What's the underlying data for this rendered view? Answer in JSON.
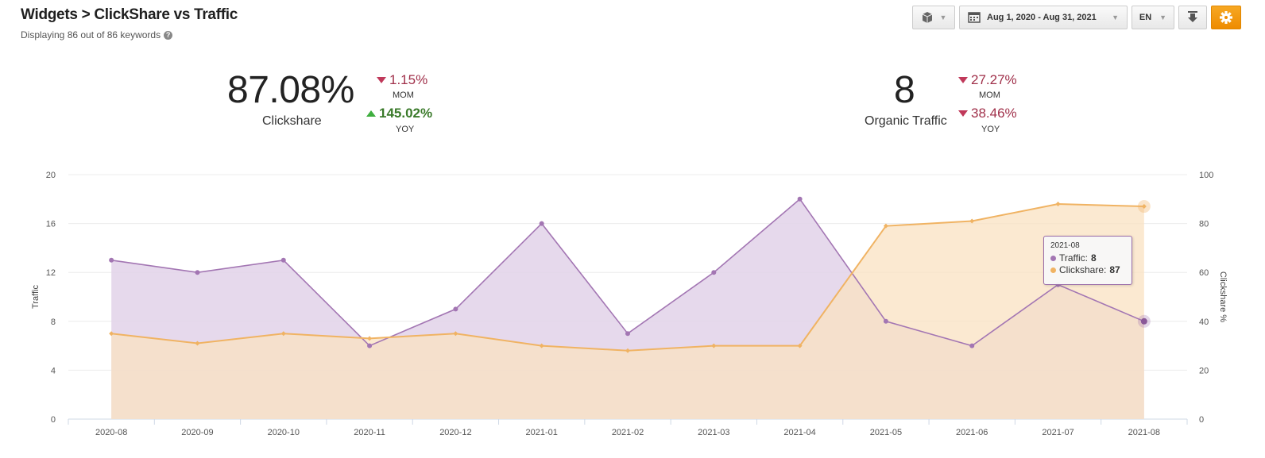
{
  "header": {
    "title": "Widgets > ClickShare vs Traffic",
    "subtitle": "Displaying 86 out of 86 keywords"
  },
  "toolbar": {
    "date_range": "Aug 1, 2020 - Aug 31, 2021",
    "language": "EN"
  },
  "kpis": {
    "clickshare": {
      "value": "87.08%",
      "label": "Clickshare",
      "mom": "1.15%",
      "mom_label": "MOM",
      "mom_direction": "down",
      "yoy": "145.02%",
      "yoy_label": "YOY",
      "yoy_direction": "up"
    },
    "traffic": {
      "value": "8",
      "label": "Organic Traffic",
      "mom": "27.27%",
      "mom_label": "MOM",
      "mom_direction": "down",
      "yoy": "38.46%",
      "yoy_label": "YOY",
      "yoy_direction": "down"
    }
  },
  "tooltip": {
    "date": "2021-08",
    "traffic_label": "Traffic:",
    "traffic_value": "8",
    "clickshare_label": "Clickshare:",
    "clickshare_value": "87"
  },
  "colors": {
    "traffic": "#a376b3",
    "clickshare": "#f0b363",
    "traffic_fill": "#e3d5ea",
    "clickshare_fill": "#fae2c2"
  },
  "chart_data": {
    "type": "area",
    "categories": [
      "2020-08",
      "2020-09",
      "2020-10",
      "2020-11",
      "2020-12",
      "2021-01",
      "2021-02",
      "2021-03",
      "2021-04",
      "2021-05",
      "2021-06",
      "2021-07",
      "2021-08"
    ],
    "series": [
      {
        "name": "Traffic",
        "axis": "left",
        "values": [
          13,
          12,
          13,
          6,
          9,
          16,
          7,
          12,
          18,
          8,
          6,
          11,
          8
        ]
      },
      {
        "name": "Clickshare",
        "axis": "right",
        "values": [
          35,
          31,
          35,
          33,
          35,
          30,
          28,
          30,
          30,
          79,
          81,
          88,
          87
        ]
      }
    ],
    "ylabel": "Traffic",
    "ylabel_right": "Clickshare %",
    "ylim": [
      0,
      20
    ],
    "ylim_right": [
      0,
      100
    ],
    "yticks": [
      0,
      4,
      8,
      12,
      16,
      20
    ],
    "yticks_right": [
      0,
      20,
      40,
      60,
      80,
      100
    ],
    "grid": true
  }
}
